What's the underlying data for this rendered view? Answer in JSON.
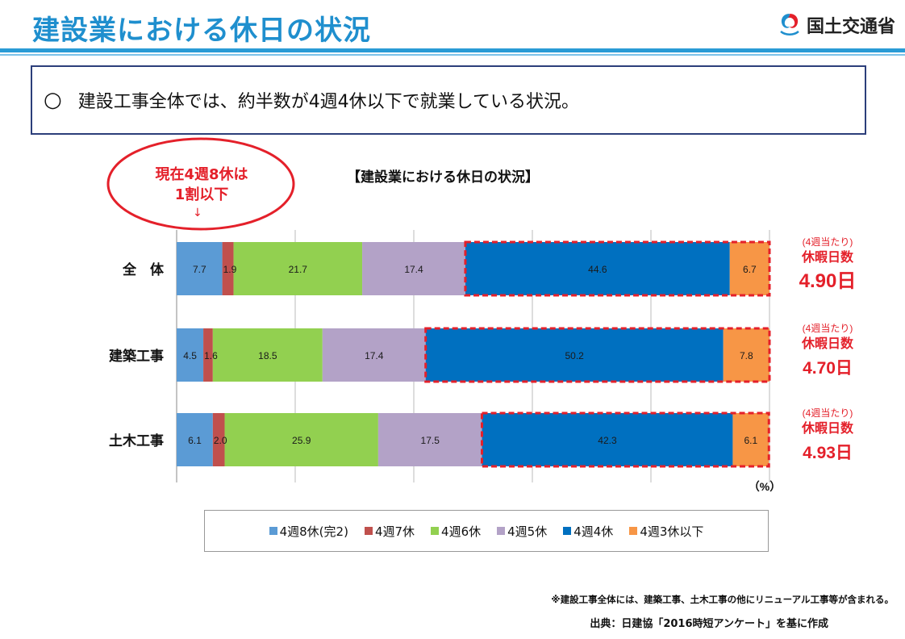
{
  "header": {
    "title": "建設業における休日の状況",
    "ministry": "国土交通省"
  },
  "summary": {
    "bullet": "○",
    "text": "建設工事全体では、約半数が4週4休以下で就業している状況。"
  },
  "callout": {
    "line1": "現在4週8休は",
    "line2": "1割以下",
    "arrow": "↓"
  },
  "chart_data": {
    "type": "bar",
    "orientation": "horizontal",
    "stacked": true,
    "title": "【建設業における休日の状況】",
    "unit_label": "（%）",
    "categories": [
      "全　体",
      "建築工事",
      "土木工事"
    ],
    "series": [
      {
        "name": "4週8休(完2)",
        "color": "#5b9bd5",
        "values": [
          7.7,
          4.5,
          6.1
        ]
      },
      {
        "name": "4週7休",
        "color": "#c0504d",
        "values": [
          1.9,
          1.6,
          2.0
        ]
      },
      {
        "name": "4週6休",
        "color": "#92d050",
        "values": [
          21.7,
          18.5,
          25.9
        ]
      },
      {
        "name": "4週5休",
        "color": "#b3a2c7",
        "values": [
          17.4,
          17.4,
          17.5
        ]
      },
      {
        "name": "4週4休",
        "color": "#0070c0",
        "values": [
          44.6,
          50.2,
          42.3
        ]
      },
      {
        "name": "4週3休以下",
        "color": "#f79646",
        "values": [
          6.7,
          7.8,
          6.1
        ]
      }
    ],
    "xlim": [
      0,
      100
    ],
    "gridlines_at": [
      20,
      40,
      60,
      80,
      100
    ],
    "side_labels": [
      {
        "sub": "(4週当たり)",
        "label": "休暇日数",
        "value": "4.90日"
      },
      {
        "sub": "(4週当たり)",
        "label": "休暇日数",
        "value": "4.70日"
      },
      {
        "sub": "(4週当たり)",
        "label": "休暇日数",
        "value": "4.93日"
      }
    ]
  },
  "colors": {
    "accent_blue": "#1f8fce",
    "highlight_red": "#e4202a",
    "frame_navy": "#2c3e7a"
  },
  "footer": {
    "note": "※建設工事全体には、建築工事、土木工事の他にリニューアル工事等が含まれる。",
    "source": "出典：日建協「2016時短アンケート」を基に作成"
  }
}
